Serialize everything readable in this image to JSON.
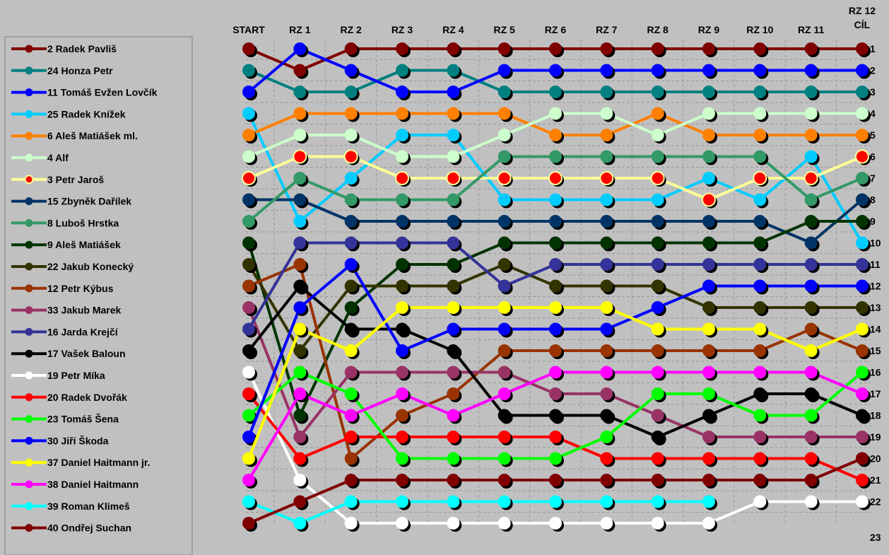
{
  "chart_data": {
    "type": "line",
    "title": "",
    "xlabel": "",
    "ylabel": "",
    "y_reversed": true,
    "ylim": [
      1,
      23
    ],
    "grid": true,
    "legend_position": "left",
    "x": [
      "START",
      "RZ 1",
      "RZ 2",
      "RZ 3",
      "RZ 4",
      "RZ 5",
      "RZ 6",
      "RZ 7",
      "RZ 8",
      "RZ 9",
      "RZ 10",
      "RZ 11",
      "RZ 12\nCÍL"
    ],
    "y_ticks": [
      "1",
      "2",
      "3",
      "4",
      "5",
      "6",
      "7",
      "8",
      "9",
      "10",
      "11",
      "12",
      "13",
      "14",
      "15",
      "16",
      "17",
      "18",
      "19",
      "20",
      "21",
      "22",
      "23"
    ],
    "series": [
      {
        "name": "2 Radek Pavliš",
        "color": "#800000",
        "values": [
          1,
          2,
          1,
          1,
          1,
          1,
          1,
          1,
          1,
          1,
          1,
          1,
          1
        ]
      },
      {
        "name": "24 Honza Petr",
        "color": "#008080",
        "values": [
          2,
          3,
          3,
          2,
          2,
          3,
          3,
          3,
          3,
          3,
          3,
          3,
          3
        ]
      },
      {
        "name": "11 Tomáš Evžen Lovčík",
        "color": "#0000ff",
        "values": [
          3,
          1,
          2,
          3,
          3,
          2,
          2,
          2,
          2,
          2,
          2,
          2,
          2
        ]
      },
      {
        "name": "25 Radek Knížek",
        "color": "#00ccff",
        "values": [
          4,
          9,
          7,
          5,
          5,
          8,
          8,
          8,
          8,
          7,
          8,
          6,
          10
        ]
      },
      {
        "name": "6 Aleš Matiášek ml.",
        "color": "#ff8000",
        "values": [
          5,
          4,
          4,
          4,
          4,
          4,
          5,
          5,
          4,
          5,
          5,
          5,
          5
        ]
      },
      {
        "name": "4 Alf",
        "color": "#ccffcc",
        "values": [
          6,
          5,
          5,
          6,
          6,
          5,
          4,
          4,
          5,
          4,
          4,
          4,
          4
        ]
      },
      {
        "name": "3 Petr Jaroš",
        "color": "#ffff99",
        "marker": "#ff0000",
        "values": [
          7,
          6,
          6,
          7,
          7,
          7,
          7,
          7,
          7,
          8,
          7,
          7,
          6
        ]
      },
      {
        "name": "15 Zbyněk Dařílek",
        "color": "#003366",
        "values": [
          8,
          8,
          9,
          9,
          9,
          9,
          9,
          9,
          9,
          9,
          9,
          10,
          8
        ]
      },
      {
        "name": "8 Luboš Hrstka",
        "color": "#339966",
        "values": [
          9,
          7,
          8,
          8,
          8,
          6,
          6,
          6,
          6,
          6,
          6,
          8,
          7
        ]
      },
      {
        "name": "9 Aleš Matiášek",
        "color": "#003300",
        "values": [
          10,
          18,
          13,
          11,
          11,
          10,
          10,
          10,
          10,
          10,
          10,
          9,
          9
        ]
      },
      {
        "name": "22 Jakub Konecký",
        "color": "#333300",
        "values": [
          11,
          15,
          12,
          12,
          12,
          11,
          12,
          12,
          12,
          13,
          13,
          13,
          13
        ]
      },
      {
        "name": "12 Petr Kýbus",
        "color": "#993300",
        "values": [
          12,
          11,
          20,
          18,
          17,
          15,
          15,
          15,
          15,
          15,
          15,
          14,
          15
        ]
      },
      {
        "name": "33 Jakub Marek",
        "color": "#993366",
        "values": [
          13,
          19,
          16,
          16,
          16,
          16,
          17,
          17,
          18,
          19,
          19,
          19,
          19
        ]
      },
      {
        "name": "16 Jarda Krejčí",
        "color": "#333399",
        "values": [
          14,
          10,
          10,
          10,
          10,
          12,
          11,
          11,
          11,
          11,
          11,
          11,
          11
        ]
      },
      {
        "name": "17 Vašek Baloun",
        "color": "#000000",
        "values": [
          15,
          12,
          14,
          14,
          15,
          18,
          18,
          18,
          19,
          18,
          17,
          17,
          18
        ]
      },
      {
        "name": "19 Petr Míka",
        "color": "#ffffff",
        "values": [
          16,
          21,
          23,
          23,
          23,
          23,
          23,
          23,
          23,
          23,
          22,
          22,
          22
        ]
      },
      {
        "name": "20 Radek Dvořák",
        "color": "#ff0000",
        "values": [
          17,
          20,
          19,
          19,
          19,
          19,
          19,
          20,
          20,
          20,
          20,
          20,
          21
        ]
      },
      {
        "name": "23 Tomáš Šena",
        "color": "#00ff00",
        "values": [
          18,
          16,
          17,
          20,
          20,
          20,
          20,
          19,
          17,
          17,
          18,
          18,
          16
        ]
      },
      {
        "name": "30 Jiří Škoda",
        "color": "#0000ff",
        "values": [
          19,
          13,
          11,
          15,
          14,
          14,
          14,
          14,
          13,
          12,
          12,
          12,
          12
        ]
      },
      {
        "name": "37 Daniel Haitmann jr.",
        "color": "#ffff00",
        "values": [
          20,
          14,
          15,
          13,
          13,
          13,
          13,
          13,
          14,
          14,
          14,
          15,
          14
        ]
      },
      {
        "name": "38 Daniel Haitmann",
        "color": "#ff00ff",
        "values": [
          21,
          17,
          18,
          17,
          18,
          17,
          16,
          16,
          16,
          16,
          16,
          16,
          17
        ]
      },
      {
        "name": "39 Roman Klimeš",
        "color": "#00ffff",
        "values": [
          22,
          23,
          22,
          22,
          22,
          22,
          22,
          22,
          22,
          22,
          null,
          null,
          null
        ]
      },
      {
        "name": "40 Ondřej Suchan",
        "color": "#800000",
        "values": [
          23,
          22,
          21,
          21,
          21,
          21,
          21,
          21,
          21,
          21,
          21,
          21,
          20
        ]
      }
    ]
  }
}
